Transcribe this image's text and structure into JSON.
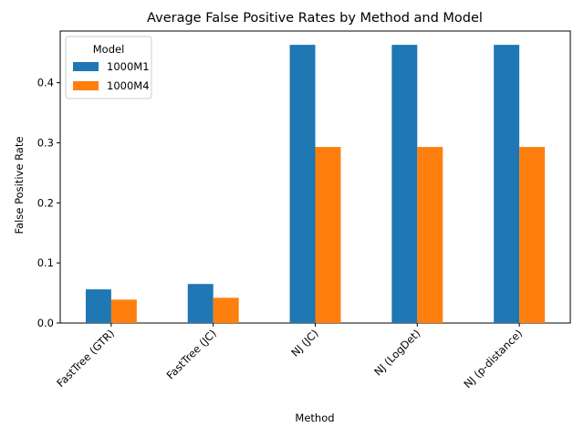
{
  "chart_data": {
    "type": "bar",
    "title": "Average False Positive Rates by Method and Model",
    "xlabel": "Method",
    "ylabel": "False Positive Rate",
    "categories": [
      "FastTree (GTR)",
      "FastTree (JC)",
      "NJ (JC)",
      "NJ (LogDet)",
      "NJ (p-distance)"
    ],
    "series": [
      {
        "name": "1000M1",
        "color": "#1f77b4",
        "values": [
          0.056,
          0.065,
          0.463,
          0.463,
          0.463
        ]
      },
      {
        "name": "1000M4",
        "color": "#ff7f0e",
        "values": [
          0.039,
          0.042,
          0.293,
          0.293,
          0.293
        ]
      }
    ],
    "ylim": [
      0,
      0.486
    ],
    "yticks": [
      0.0,
      0.1,
      0.2,
      0.3,
      0.4
    ],
    "ytick_labels": [
      "0.0",
      "0.1",
      "0.2",
      "0.3",
      "0.4"
    ],
    "legend": {
      "title": "Model",
      "position": "top-left"
    },
    "grid": false
  }
}
